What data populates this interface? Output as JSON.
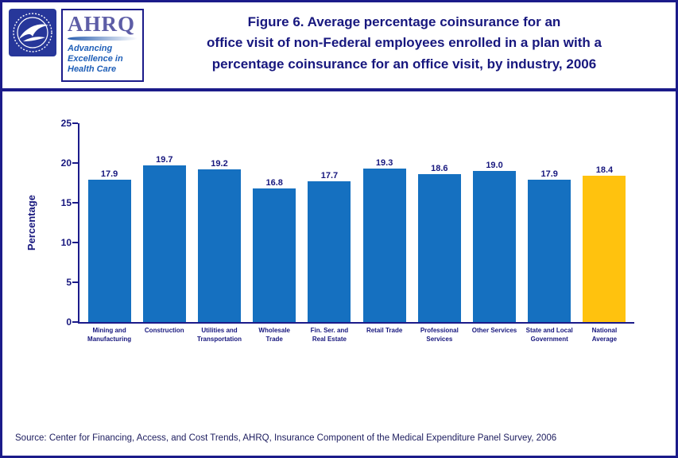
{
  "header": {
    "title_lines": [
      "Figure 6. Average percentage coinsurance for an",
      "office visit of non-Federal employees enrolled in a plan with a",
      "percentage coinsurance for an office visit, by industry, 2006"
    ]
  },
  "logos": {
    "hhs_label": "HHS seal",
    "ahrq_acronym": "AHRQ",
    "ahrq_tagline": [
      "Advancing",
      "Excellence in",
      "Health Care"
    ]
  },
  "chart_data": {
    "type": "bar",
    "title": "Figure 6. Average percentage coinsurance for an office visit of non-Federal employees enrolled in a plan with a percentage coinsurance for an office visit, by industry, 2006",
    "xlabel": "",
    "ylabel": "Percentage",
    "ylim": [
      0,
      25
    ],
    "yticks": [
      0,
      5,
      10,
      15,
      20,
      25
    ],
    "grid": false,
    "legend": false,
    "categories": [
      "Mining and\nManufacturing",
      "Construction",
      "Utilities and\nTransportation",
      "Wholesale\nTrade",
      "Fin. Ser. and\nReal Estate",
      "Retail Trade",
      "Professional\nServices",
      "Other Services",
      "State and Local\nGovernment",
      "National\nAverage"
    ],
    "values": [
      17.9,
      19.7,
      19.2,
      16.8,
      17.7,
      19.3,
      18.6,
      19.0,
      17.9,
      18.4
    ],
    "highlight_index": 9,
    "colors": {
      "bar": "#1570C0",
      "highlight": "#FFC20E",
      "axis": "#1b1b8a",
      "text": "#17177e"
    }
  },
  "footer": {
    "source": "Source: Center for Financing, Access, and Cost Trends, AHRQ, Insurance Component of the Medical Expenditure Panel Survey, 2006"
  }
}
